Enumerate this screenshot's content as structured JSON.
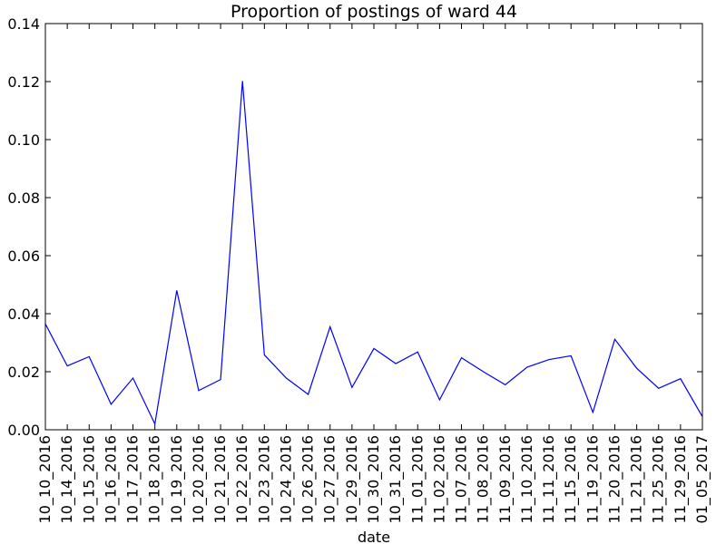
{
  "chart_data": {
    "type": "line",
    "title": "Proportion of postings of ward 44",
    "xlabel": "date",
    "ylabel": "",
    "ylim": [
      0,
      0.14
    ],
    "yticks": [
      "0.00",
      "0.02",
      "0.04",
      "0.06",
      "0.08",
      "0.10",
      "0.12",
      "0.14"
    ],
    "ytick_values": [
      0,
      0.02,
      0.04,
      0.06,
      0.08,
      0.1,
      0.12,
      0.14
    ],
    "grid": false,
    "line_color": "#0000ff",
    "categories": [
      "10_10_2016",
      "10_14_2016",
      "10_15_2016",
      "10_16_2016",
      "10_17_2016",
      "10_18_2016",
      "10_19_2016",
      "10_20_2016",
      "10_21_2016",
      "10_22_2016",
      "10_23_2016",
      "10_24_2016",
      "10_26_2016",
      "10_27_2016",
      "10_29_2016",
      "10_30_2016",
      "10_31_2016",
      "11_01_2016",
      "11_02_2016",
      "11_07_2016",
      "11_08_2016",
      "11_09_2016",
      "11_10_2016",
      "11_11_2016",
      "11_15_2016",
      "11_19_2016",
      "11_20_2016",
      "11_21_2016",
      "11_25_2016",
      "11_29_2016",
      "01_05_2017"
    ],
    "series": [
      {
        "values": [
          0.0365,
          0.022,
          0.0252,
          0.0088,
          0.0178,
          0.002,
          0.048,
          0.0135,
          0.0173,
          0.1202,
          0.0258,
          0.0178,
          0.0122,
          0.0355,
          0.0146,
          0.028,
          0.0228,
          0.0268,
          0.0103,
          0.0248,
          0.02,
          0.0155,
          0.0216,
          0.0242,
          0.0255,
          0.006,
          0.0312,
          0.0212,
          0.0143,
          0.0176,
          0.0045
        ]
      }
    ]
  }
}
